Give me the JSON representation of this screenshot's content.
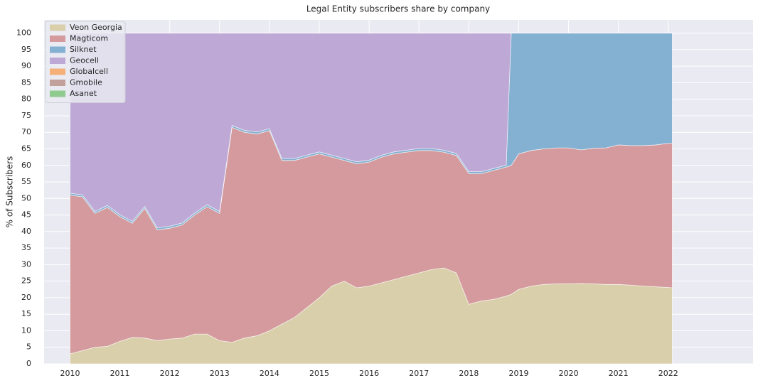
{
  "chart_data": {
    "type": "stacked_area",
    "title": "Legal Entity subscribers share by company",
    "y_label": "% of Subscribers",
    "x": [
      2010,
      2010.25,
      2010.5,
      2010.75,
      2011,
      2011.25,
      2011.5,
      2011.75,
      2012,
      2012.25,
      2012.5,
      2012.75,
      2013,
      2013.25,
      2013.5,
      2013.75,
      2014,
      2014.25,
      2014.5,
      2014.75,
      2015,
      2015.25,
      2015.5,
      2015.75,
      2016,
      2016.25,
      2016.5,
      2016.75,
      2017,
      2017.25,
      2017.5,
      2017.75,
      2018,
      2018.25,
      2018.5,
      2018.75,
      2018.85,
      2019,
      2019.25,
      2019.5,
      2019.75,
      2020,
      2020.25,
      2020.5,
      2020.75,
      2021,
      2021.25,
      2021.5,
      2021.75,
      2022,
      2022.08
    ],
    "series": [
      {
        "name": "Veon Georgia",
        "color": "#d9cfaa",
        "values": [
          3,
          4,
          5,
          5.3,
          6.8,
          8,
          7.8,
          7,
          7.5,
          7.8,
          9,
          9,
          7,
          6.5,
          7.8,
          8.5,
          10,
          12,
          14,
          17,
          20,
          23.5,
          25,
          23,
          23.5,
          24.5,
          25.5,
          26.5,
          27.5,
          28.5,
          29,
          27.5,
          18,
          19,
          19.5,
          20.5,
          21,
          22.5,
          23.5,
          24,
          24.2,
          24.2,
          24.3,
          24.2,
          24,
          24,
          23.8,
          23.5,
          23.3,
          23.1,
          23
        ]
      },
      {
        "name": "Magticom",
        "color": "#d49a9d",
        "values": [
          48,
          46.5,
          40.5,
          42,
          37.7,
          34.5,
          39.2,
          33.5,
          33.5,
          34.2,
          36,
          38.5,
          38.5,
          65,
          62.2,
          61,
          60.5,
          49.5,
          47.5,
          45.5,
          43.5,
          39,
          36.5,
          37.5,
          37.5,
          38,
          38,
          37.5,
          37,
          36,
          35,
          35.5,
          39.5,
          38.5,
          39,
          39,
          39,
          41,
          41,
          41,
          41.1,
          41.1,
          40.4,
          41,
          41.3,
          42.2,
          42.2,
          42.5,
          42.9,
          43.6,
          43.7
        ]
      },
      {
        "name": "Silknet",
        "color": "#84b0d2",
        "values": [
          0.6,
          0.6,
          0.6,
          0.6,
          0.6,
          0.6,
          0.6,
          0.6,
          0.6,
          0.6,
          0.6,
          0.6,
          0.6,
          0.6,
          0.6,
          0.6,
          0.6,
          0.6,
          0.6,
          0.6,
          0.6,
          0.6,
          0.6,
          0.6,
          0.6,
          0.6,
          0.6,
          0.6,
          0.6,
          0.6,
          0.6,
          0.6,
          0.6,
          0.6,
          0.6,
          0.6,
          40,
          36.5,
          35.5,
          35,
          34.7,
          34.7,
          35.3,
          34.8,
          34.7,
          33.8,
          34,
          34,
          33.8,
          33.3,
          33.3
        ]
      },
      {
        "name": "Geocell",
        "color": "#bea8d6",
        "values": [
          48.4,
          48.9,
          53.9,
          52.1,
          54.9,
          56.9,
          52.4,
          58.9,
          58.4,
          57.4,
          54.4,
          51.9,
          53.9,
          27.9,
          29.4,
          29.9,
          28.9,
          37.9,
          37.9,
          36.9,
          35.9,
          36.9,
          37.9,
          38.9,
          38.4,
          36.9,
          35.9,
          35.4,
          34.9,
          34.9,
          35.4,
          36.4,
          41.9,
          41.9,
          40.9,
          39.9,
          0,
          0,
          0,
          0,
          0,
          0,
          0,
          0,
          0,
          0,
          0,
          0,
          0,
          0,
          0
        ]
      },
      {
        "name": "Globalcell",
        "color": "#f5b07a",
        "values": [
          0,
          0,
          0,
          0,
          0,
          0,
          0,
          0,
          0,
          0,
          0,
          0,
          0,
          0,
          0,
          0,
          0,
          0,
          0,
          0,
          0,
          0,
          0,
          0,
          0,
          0,
          0,
          0,
          0,
          0,
          0,
          0,
          0,
          0,
          0,
          0,
          0,
          0,
          0,
          0,
          0,
          0,
          0,
          0,
          0,
          0,
          0,
          0,
          0,
          0,
          0
        ]
      },
      {
        "name": "Gmobile",
        "color": "#c2a09c",
        "values": [
          0,
          0,
          0,
          0,
          0,
          0,
          0,
          0,
          0,
          0,
          0,
          0,
          0,
          0,
          0,
          0,
          0,
          0,
          0,
          0,
          0,
          0,
          0,
          0,
          0,
          0,
          0,
          0,
          0,
          0,
          0,
          0,
          0,
          0,
          0,
          0,
          0,
          0,
          0,
          0,
          0,
          0,
          0,
          0,
          0,
          0,
          0,
          0,
          0,
          0,
          0
        ]
      },
      {
        "name": "Asanet",
        "color": "#8fcb8f",
        "values": [
          0,
          0,
          0,
          0,
          0,
          0,
          0,
          0,
          0,
          0,
          0,
          0,
          0,
          0,
          0,
          0,
          0,
          0,
          0,
          0,
          0,
          0,
          0,
          0,
          0,
          0,
          0,
          0,
          0,
          0,
          0,
          0,
          0,
          0,
          0,
          0,
          0,
          0,
          0,
          0,
          0,
          0,
          0,
          0,
          0,
          0,
          0,
          0,
          0,
          0,
          0
        ]
      }
    ],
    "xlim": [
      2009.48,
      2023.7
    ],
    "xticks": [
      2010,
      2011,
      2012,
      2013,
      2014,
      2015,
      2016,
      2017,
      2018,
      2019,
      2020,
      2021,
      2022
    ],
    "ylim": [
      0,
      104
    ],
    "yticks": [
      0,
      5,
      10,
      15,
      20,
      25,
      30,
      35,
      40,
      45,
      50,
      55,
      60,
      65,
      70,
      75,
      80,
      85,
      90,
      95,
      100
    ],
    "grid": true,
    "legend": "upper left"
  }
}
